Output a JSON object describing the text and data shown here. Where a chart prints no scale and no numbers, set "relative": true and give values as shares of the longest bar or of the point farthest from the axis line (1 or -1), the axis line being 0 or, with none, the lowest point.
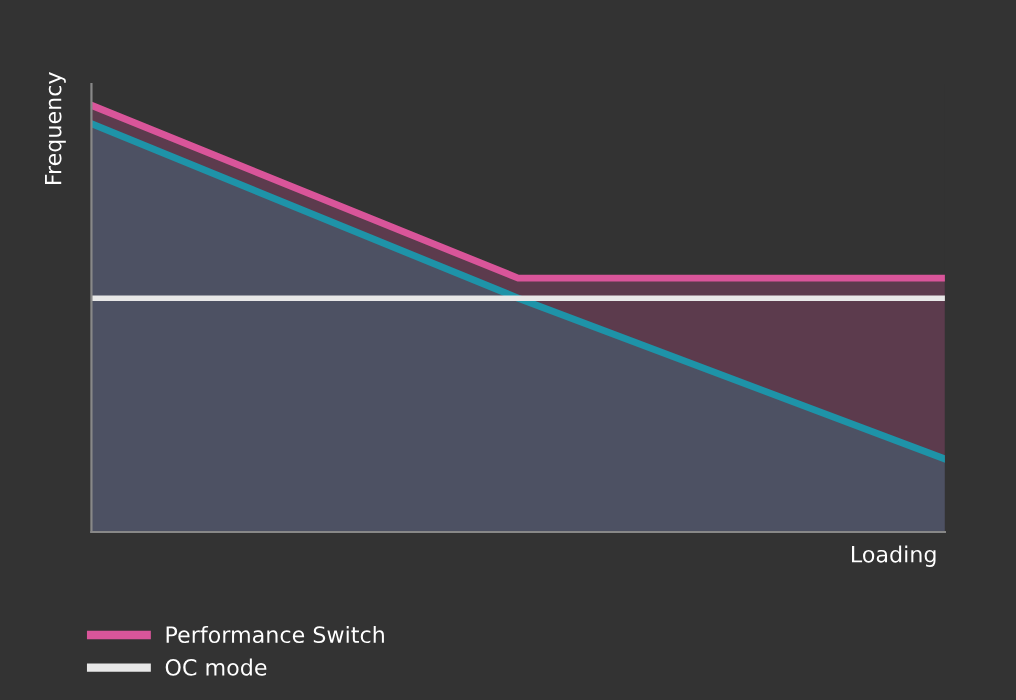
{
  "chart_data": {
    "type": "line",
    "relative": true,
    "xlabel": "Loading",
    "ylabel": "Frequency",
    "categories": [
      null,
      null,
      null
    ],
    "series": [
      {
        "name": "Performance Switch",
        "type": "area",
        "color": "#d9559a",
        "values": [
          1,
          0.595,
          0.595
        ]
      },
      {
        "type": "area",
        "color": "#1e93a8",
        "values": [
          0.957,
          0.548,
          0.171
        ]
      },
      {
        "name": "OC mode",
        "color": "#e8e8e8",
        "values": [
          0.548,
          0.548,
          0.548
        ]
      }
    ],
    "legend": "bottom left",
    "grid": false
  }
}
